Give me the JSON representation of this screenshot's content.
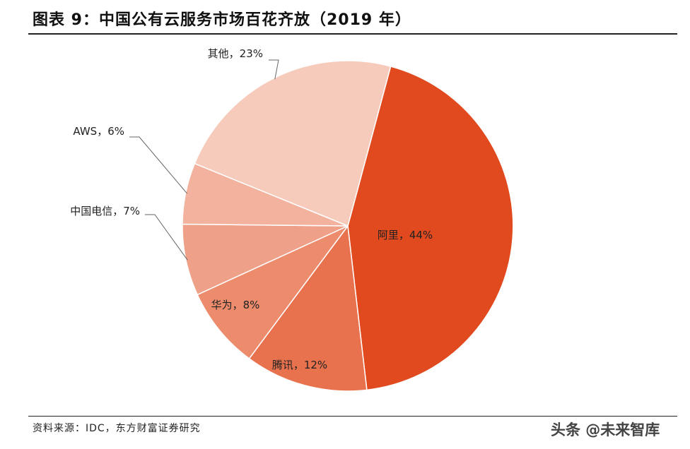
{
  "title": "图表 9：中国公有云服务市场百花齐放（2019 年）",
  "source": "资料来源：IDC，东方财富证券研究",
  "watermark": "头条 @未来智库",
  "chart_data": {
    "type": "pie",
    "title": "图表 9：中国公有云服务市场百花齐放（2019 年）",
    "slices": [
      {
        "label": "阿里，44%",
        "value": 44,
        "color": "#e04a1e"
      },
      {
        "label": "腾讯，12%",
        "value": 12,
        "color": "#e9724e"
      },
      {
        "label": "华为，8%",
        "value": 8,
        "color": "#ec8c6d"
      },
      {
        "label": "中国电信，7%",
        "value": 7,
        "color": "#efa088"
      },
      {
        "label": "AWS，6%",
        "value": 6,
        "color": "#f2b29e"
      },
      {
        "label": "其他，23%",
        "value": 23,
        "color": "#f6cbbb"
      }
    ]
  }
}
